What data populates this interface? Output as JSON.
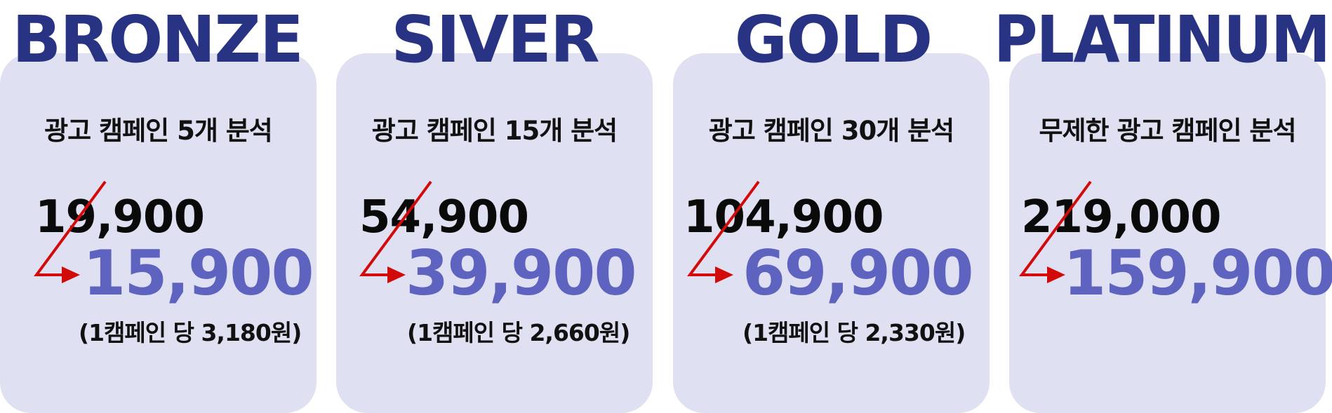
{
  "colors": {
    "tier_title": "#283483",
    "card_bg": "#dfe0f1",
    "new_price": "#5e63c0",
    "arrow": "#d20a0a",
    "text": "#111111"
  },
  "plans": [
    {
      "tier": "BRONZE",
      "description": "광고 캠페인 5개 분석",
      "original_price": "19,900",
      "sale_price": "15,900",
      "per_campaign": "(1캠페인 당 3,180원)"
    },
    {
      "tier": "SIVER",
      "description": "광고 캠페인 15개 분석",
      "original_price": "54,900",
      "sale_price": "39,900",
      "per_campaign": "(1캠페인 당 2,660원)"
    },
    {
      "tier": "GOLD",
      "description": "광고 캠페인 30개 분석",
      "original_price": "104,900",
      "sale_price": "69,900",
      "per_campaign": "(1캠페인 당 2,330원)"
    },
    {
      "tier": "PLATINUM",
      "description": "무제한 광고 캠페인 분석",
      "original_price": "219,000",
      "sale_price": "159,900",
      "per_campaign": ""
    }
  ]
}
